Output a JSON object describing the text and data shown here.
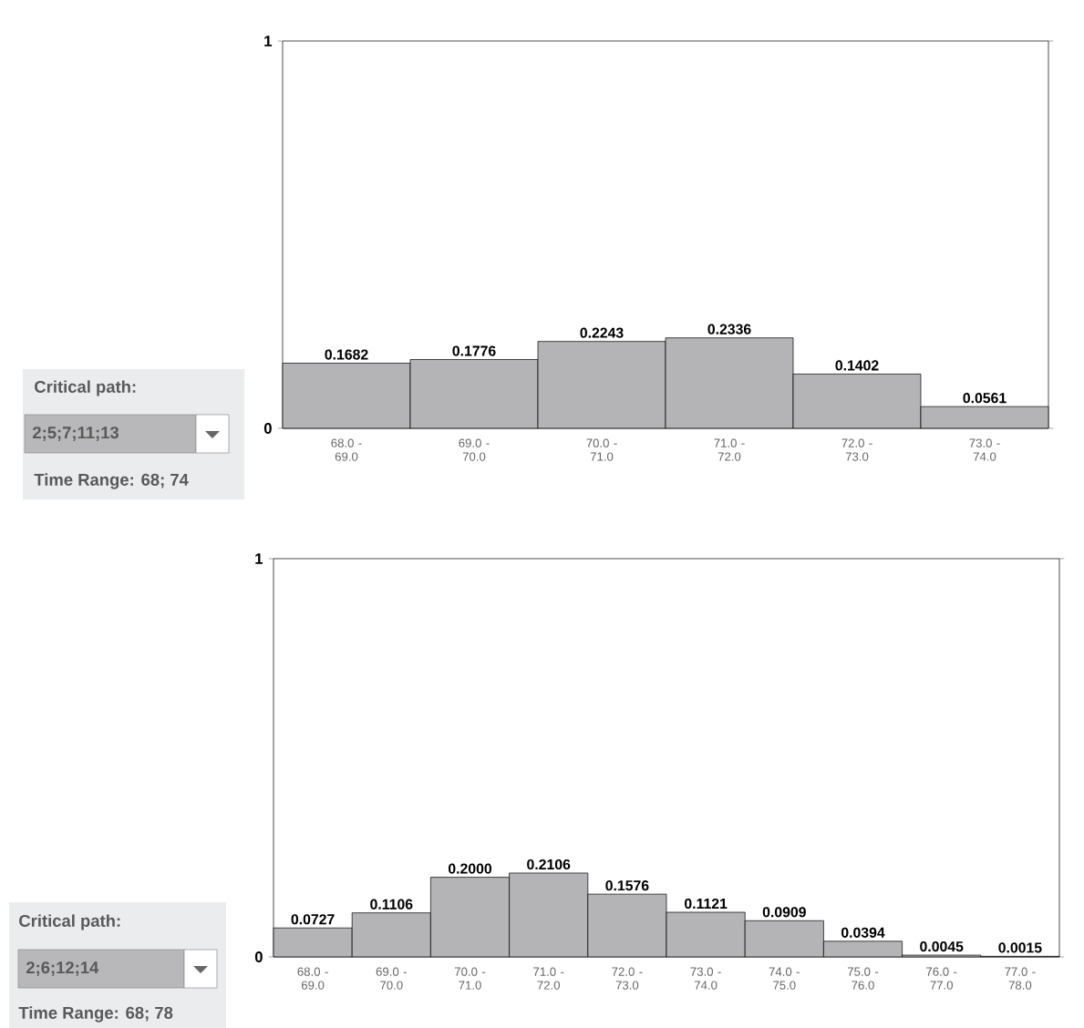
{
  "chart_data": [
    {
      "type": "bar",
      "categories": [
        "68.0 - 69.0",
        "69.0 - 70.0",
        "70.0 - 71.0",
        "71.0 - 72.0",
        "72.0 - 73.0",
        "73.0 - 74.0"
      ],
      "values": [
        0.1682,
        0.1776,
        0.2243,
        0.2336,
        0.1402,
        0.0561
      ],
      "value_labels": [
        "0.1682",
        "0.1776",
        "0.2243",
        "0.2336",
        "0.1402",
        "0.0561"
      ],
      "color": "#b4b4b6",
      "ylim": [
        0,
        1
      ],
      "yticks": [
        0,
        1
      ],
      "grid": false,
      "annotations": [
        "Critical path:",
        "2;5;7;11;13",
        "Time Range: 68; 74"
      ]
    },
    {
      "type": "bar",
      "categories": [
        "68.0 - 69.0",
        "69.0 - 70.0",
        "70.0 - 71.0",
        "71.0 - 72.0",
        "72.0 - 73.0",
        "73.0 - 74.0",
        "74.0 - 75.0",
        "75.0 - 76.0",
        "76.0 - 77.0",
        "77.0 - 78.0"
      ],
      "values": [
        0.0727,
        0.1106,
        0.2,
        0.2106,
        0.1576,
        0.1121,
        0.0909,
        0.0394,
        0.0045,
        0.0015
      ],
      "value_labels": [
        "0.0727",
        "0.1106",
        "0.2000",
        "0.2106",
        "0.1576",
        "0.1121",
        "0.0909",
        "0.0394",
        "0.0045",
        "0.0015"
      ],
      "color": "#b4b4b6",
      "ylim": [
        0,
        1
      ],
      "yticks": [
        0,
        1
      ],
      "grid": false,
      "annotations": [
        "Critical path:",
        "2;6;12;14",
        "Time Range: 68; 78"
      ]
    }
  ]
}
